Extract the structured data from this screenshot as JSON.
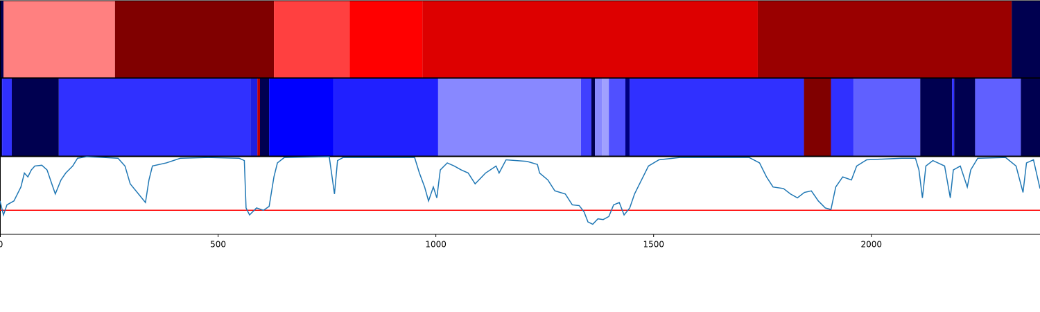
{
  "chart_data": [
    {
      "type": "segments",
      "xlim": [
        0,
        2388
      ],
      "segments": [
        {
          "start": 0,
          "end": 8,
          "color": "#000050"
        },
        {
          "start": 8,
          "end": 264,
          "color": "#ff8080"
        },
        {
          "start": 264,
          "end": 629,
          "color": "#800000"
        },
        {
          "start": 629,
          "end": 803,
          "color": "#ff4040"
        },
        {
          "start": 803,
          "end": 970,
          "color": "#ff0000"
        },
        {
          "start": 970,
          "end": 1740,
          "color": "#dd0000"
        },
        {
          "start": 1740,
          "end": 2323,
          "color": "#9a0000"
        },
        {
          "start": 2323,
          "end": 2388,
          "color": "#000050"
        }
      ]
    },
    {
      "type": "segments",
      "xlim": [
        0,
        2388
      ],
      "segments": [
        {
          "start": 0,
          "end": 5,
          "color": "#000050"
        },
        {
          "start": 5,
          "end": 27,
          "color": "#3030ff"
        },
        {
          "start": 27,
          "end": 135,
          "color": "#000050"
        },
        {
          "start": 135,
          "end": 575,
          "color": "#3030ff"
        },
        {
          "start": 575,
          "end": 591,
          "color": "#2020e0"
        },
        {
          "start": 591,
          "end": 597,
          "color": "#c00000"
        },
        {
          "start": 597,
          "end": 618,
          "color": "#000050"
        },
        {
          "start": 618,
          "end": 766,
          "color": "#0000ff"
        },
        {
          "start": 766,
          "end": 1006,
          "color": "#2020ff"
        },
        {
          "start": 1006,
          "end": 1334,
          "color": "#8888ff"
        },
        {
          "start": 1334,
          "end": 1358,
          "color": "#4040ff"
        },
        {
          "start": 1358,
          "end": 1366,
          "color": "#000050"
        },
        {
          "start": 1366,
          "end": 1382,
          "color": "#8888ff"
        },
        {
          "start": 1382,
          "end": 1398,
          "color": "#a0a0ff"
        },
        {
          "start": 1398,
          "end": 1436,
          "color": "#5050ff"
        },
        {
          "start": 1436,
          "end": 1446,
          "color": "#000080"
        },
        {
          "start": 1446,
          "end": 1846,
          "color": "#3030ff"
        },
        {
          "start": 1846,
          "end": 1908,
          "color": "#800000"
        },
        {
          "start": 1908,
          "end": 1960,
          "color": "#3030ff"
        },
        {
          "start": 1960,
          "end": 2113,
          "color": "#6060ff"
        },
        {
          "start": 2113,
          "end": 2186,
          "color": "#000050"
        },
        {
          "start": 2186,
          "end": 2191,
          "color": "#3030ff"
        },
        {
          "start": 2191,
          "end": 2239,
          "color": "#000050"
        },
        {
          "start": 2239,
          "end": 2344,
          "color": "#6060ff"
        },
        {
          "start": 2344,
          "end": 2388,
          "color": "#000050"
        }
      ]
    },
    {
      "type": "line",
      "xlim": [
        0,
        2388
      ],
      "ylim": [
        0,
        1
      ],
      "xticks": [
        0,
        500,
        1000,
        1500,
        2000
      ],
      "hline": {
        "value": 0.31,
        "color": "#ff0000"
      },
      "x": [
        0,
        8,
        16,
        32,
        48,
        56,
        64,
        72,
        80,
        96,
        108,
        119,
        127,
        140,
        151,
        167,
        178,
        199,
        239,
        271,
        287,
        299,
        318,
        334,
        342,
        350,
        382,
        414,
        478,
        549,
        561,
        565,
        573,
        589,
        605,
        618,
        629,
        637,
        653,
        756,
        768,
        775,
        788,
        952,
        963,
        975,
        984,
        995,
        1003,
        1011,
        1027,
        1043,
        1059,
        1075,
        1091,
        1115,
        1139,
        1146,
        1162,
        1210,
        1234,
        1239,
        1258,
        1274,
        1298,
        1314,
        1330,
        1341,
        1350,
        1361,
        1373,
        1385,
        1398,
        1409,
        1422,
        1433,
        1446,
        1457,
        1473,
        1489,
        1513,
        1561,
        1720,
        1744,
        1760,
        1775,
        1799,
        1815,
        1831,
        1847,
        1863,
        1879,
        1895,
        1908,
        1919,
        1935,
        1955,
        1967,
        1990,
        2070,
        2102,
        2110,
        2118,
        2126,
        2142,
        2169,
        2182,
        2189,
        2205,
        2221,
        2229,
        2245,
        2309,
        2333,
        2349,
        2357,
        2373,
        2388
      ],
      "series": [
        {
          "color": "#1f77b4",
          "values": [
            0.43,
            0.25,
            0.38,
            0.43,
            0.61,
            0.79,
            0.74,
            0.83,
            0.88,
            0.89,
            0.83,
            0.65,
            0.52,
            0.7,
            0.79,
            0.88,
            0.98,
            1.0,
            0.99,
            0.98,
            0.88,
            0.65,
            0.52,
            0.41,
            0.7,
            0.88,
            0.92,
            0.98,
            0.99,
            0.98,
            0.95,
            0.34,
            0.25,
            0.34,
            0.31,
            0.36,
            0.74,
            0.92,
            0.99,
            1.0,
            0.52,
            0.95,
            0.99,
            0.99,
            0.79,
            0.61,
            0.43,
            0.61,
            0.47,
            0.83,
            0.92,
            0.88,
            0.83,
            0.79,
            0.65,
            0.79,
            0.88,
            0.79,
            0.96,
            0.94,
            0.9,
            0.79,
            0.7,
            0.56,
            0.52,
            0.38,
            0.37,
            0.29,
            0.16,
            0.13,
            0.2,
            0.19,
            0.23,
            0.38,
            0.41,
            0.25,
            0.34,
            0.52,
            0.7,
            0.88,
            0.96,
            0.99,
            0.99,
            0.92,
            0.74,
            0.61,
            0.59,
            0.52,
            0.47,
            0.54,
            0.56,
            0.43,
            0.34,
            0.32,
            0.61,
            0.74,
            0.7,
            0.88,
            0.96,
            0.98,
            0.98,
            0.83,
            0.47,
            0.88,
            0.95,
            0.88,
            0.47,
            0.83,
            0.88,
            0.61,
            0.83,
            0.98,
            0.99,
            0.88,
            0.54,
            0.92,
            0.96,
            0.59
          ]
        }
      ]
    }
  ]
}
